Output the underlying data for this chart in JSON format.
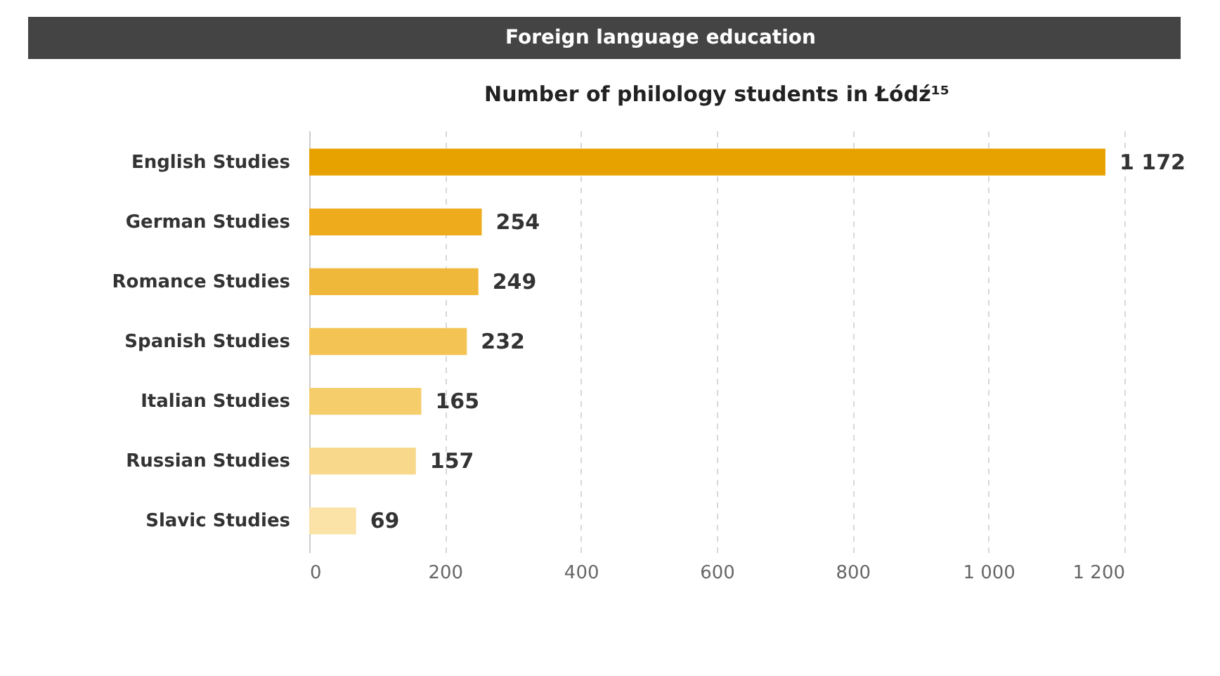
{
  "chart_data": {
    "type": "bar",
    "orientation": "horizontal",
    "title": "Foreign language education",
    "subtitle": "Number of philology students in Łódź¹⁵",
    "categories": [
      "English Studies",
      "German Studies",
      "Romance Studies",
      "Spanish Studies",
      "Italian Studies",
      "Russian Studies",
      "Slavic Studies"
    ],
    "values": [
      1172,
      254,
      249,
      232,
      165,
      157,
      69
    ],
    "value_labels": [
      "1 172",
      "254",
      "249",
      "232",
      "165",
      "157",
      "69"
    ],
    "colors": [
      "#e8a200",
      "#eeac1c",
      "#f0b83a",
      "#f3c453",
      "#f6cd6b",
      "#f8d98c",
      "#fbe3a8"
    ],
    "xlim": [
      0,
      1200
    ],
    "xticks": [
      0,
      200,
      400,
      600,
      800,
      {
        "value": 1000,
        "label": "1 000"
      },
      {
        "value": 1200,
        "label": "1 200"
      }
    ],
    "grid": "x"
  }
}
